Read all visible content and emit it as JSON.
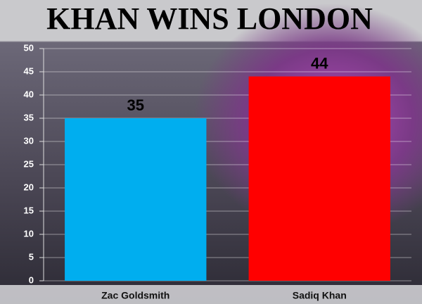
{
  "chart_data": {
    "type": "bar",
    "title": "KHAN WINS LONDON",
    "categories": [
      "Zac Goldsmith",
      "Sadiq Khan"
    ],
    "values": [
      35,
      44
    ],
    "colors": [
      "#00aeef",
      "#ff0000"
    ],
    "ylim": [
      0,
      50
    ],
    "yticks": [
      0,
      5,
      10,
      15,
      20,
      25,
      30,
      35,
      40,
      45,
      50
    ],
    "grid": true
  }
}
